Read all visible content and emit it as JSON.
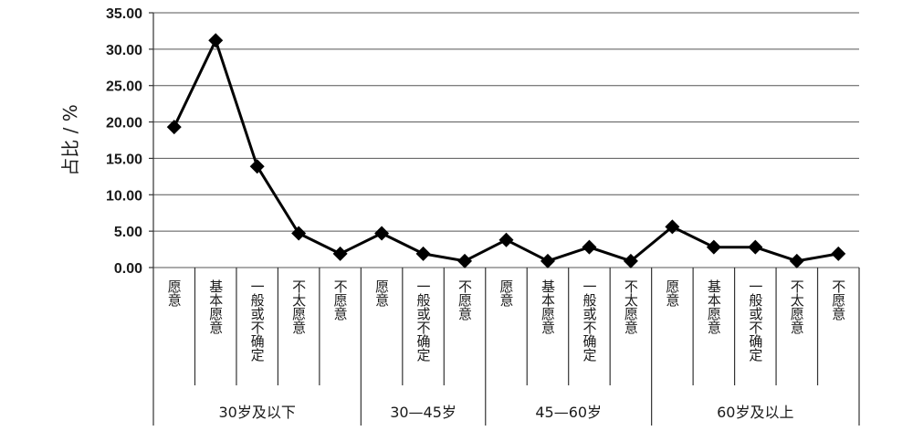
{
  "chart_data": {
    "type": "line",
    "ylabel": "占比 / %",
    "ylim": [
      0,
      35
    ],
    "yticks": [
      "0.00",
      "5.00",
      "10.00",
      "15.00",
      "20.00",
      "25.00",
      "30.00",
      "35.00"
    ],
    "grid": true,
    "legend": "none",
    "groups": [
      {
        "name": "30岁及以下",
        "categories": [
          "愿意",
          "基本愿意",
          "一般或不确定",
          "不太愿意",
          "不愿意"
        ],
        "values": [
          19.3,
          31.2,
          13.9,
          4.7,
          1.9
        ]
      },
      {
        "name": "30—45岁",
        "categories": [
          "愿意",
          "一般或不确定",
          "不愿意"
        ],
        "values": [
          4.7,
          1.9,
          0.9
        ]
      },
      {
        "name": "45—60岁",
        "categories": [
          "愿意",
          "基本愿意",
          "一般或不确定",
          "不太愿意"
        ],
        "values": [
          3.8,
          0.9,
          2.8,
          0.9
        ]
      },
      {
        "name": "60岁及以上",
        "categories": [
          "愿意",
          "基本愿意",
          "一般或不确定",
          "不太愿意",
          "不愿意"
        ],
        "values": [
          5.6,
          2.8,
          2.8,
          0.9,
          1.9
        ]
      }
    ]
  }
}
